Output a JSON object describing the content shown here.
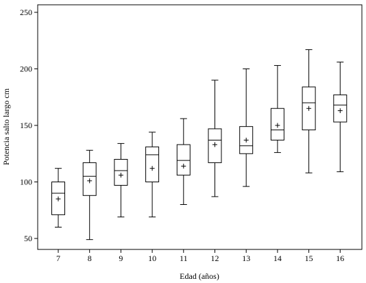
{
  "chart_data": {
    "type": "box",
    "xlabel": "Edad (años)",
    "ylabel": "Potencia salto largo cm",
    "ylim": [
      35,
      258
    ],
    "yticks": [
      50,
      100,
      150,
      200,
      250
    ],
    "grid": false,
    "categories": [
      "7",
      "8",
      "9",
      "10",
      "11",
      "12",
      "13",
      "14",
      "15",
      "16"
    ],
    "boxes": [
      {
        "min": 60,
        "q1": 71,
        "median": 90,
        "q3": 100,
        "max": 112,
        "mean": 85
      },
      {
        "min": 49,
        "q1": 88,
        "median": 105,
        "q3": 117,
        "max": 128,
        "mean": 101
      },
      {
        "min": 69,
        "q1": 97,
        "median": 110,
        "q3": 120,
        "max": 134,
        "mean": 106
      },
      {
        "min": 69,
        "q1": 100,
        "median": 124,
        "q3": 131,
        "max": 144,
        "mean": 112
      },
      {
        "min": 80,
        "q1": 106,
        "median": 119,
        "q3": 133,
        "max": 156,
        "mean": 114
      },
      {
        "min": 87,
        "q1": 117,
        "median": 137,
        "q3": 147,
        "max": 190,
        "mean": 133
      },
      {
        "min": 96,
        "q1": 125,
        "median": 132,
        "q3": 149,
        "max": 200,
        "mean": 137
      },
      {
        "min": 126,
        "q1": 137,
        "median": 146,
        "q3": 165,
        "max": 203,
        "mean": 150
      },
      {
        "min": 108,
        "q1": 146,
        "median": 170,
        "q3": 184,
        "max": 217,
        "mean": 165
      },
      {
        "min": 109,
        "q1": 153,
        "median": 168,
        "q3": 177,
        "max": 206,
        "mean": 163
      }
    ]
  }
}
